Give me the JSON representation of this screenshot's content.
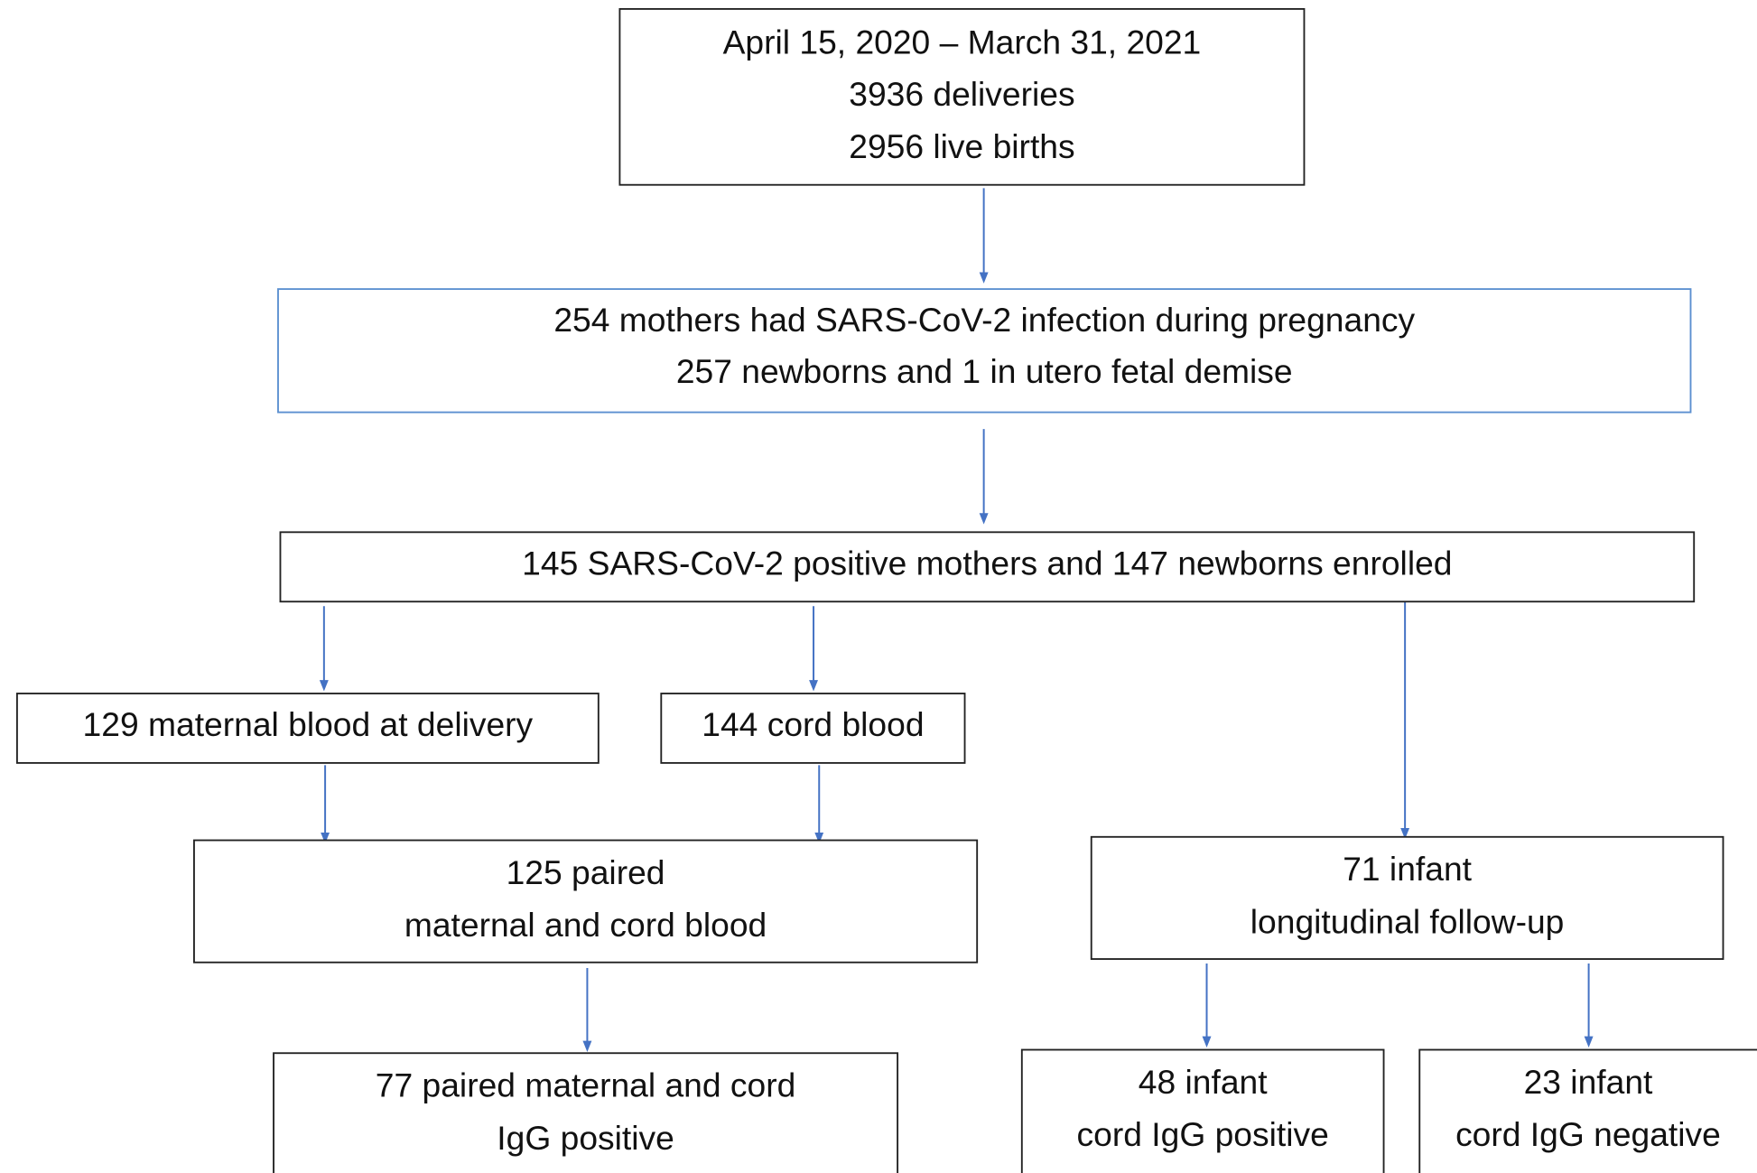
{
  "nodes": [
    {
      "lines": [
        "April 15, 2020 – March 31, 2021",
        "3936 deliveries",
        "2956 live births"
      ]
    },
    {
      "lines": [
        "254 mothers had SARS-CoV-2 infection during pregnancy",
        "257 newborns and 1 in utero fetal demise"
      ]
    },
    {
      "lines": [
        "145 SARS-CoV-2 positive mothers and 147 newborns enrolled"
      ]
    },
    {
      "lines": [
        "129 maternal blood at delivery"
      ]
    },
    {
      "lines": [
        "144 cord blood"
      ]
    },
    {
      "lines": [
        "125 paired",
        "maternal and cord blood"
      ]
    },
    {
      "lines": [
        "71 infant",
        "longitudinal follow-up"
      ]
    },
    {
      "lines": [
        "77 paired maternal and cord",
        "IgG positive"
      ]
    },
    {
      "lines": [
        "48 infant",
        "cord IgG positive"
      ]
    },
    {
      "lines": [
        "23 infant",
        "cord IgG negative"
      ]
    }
  ]
}
